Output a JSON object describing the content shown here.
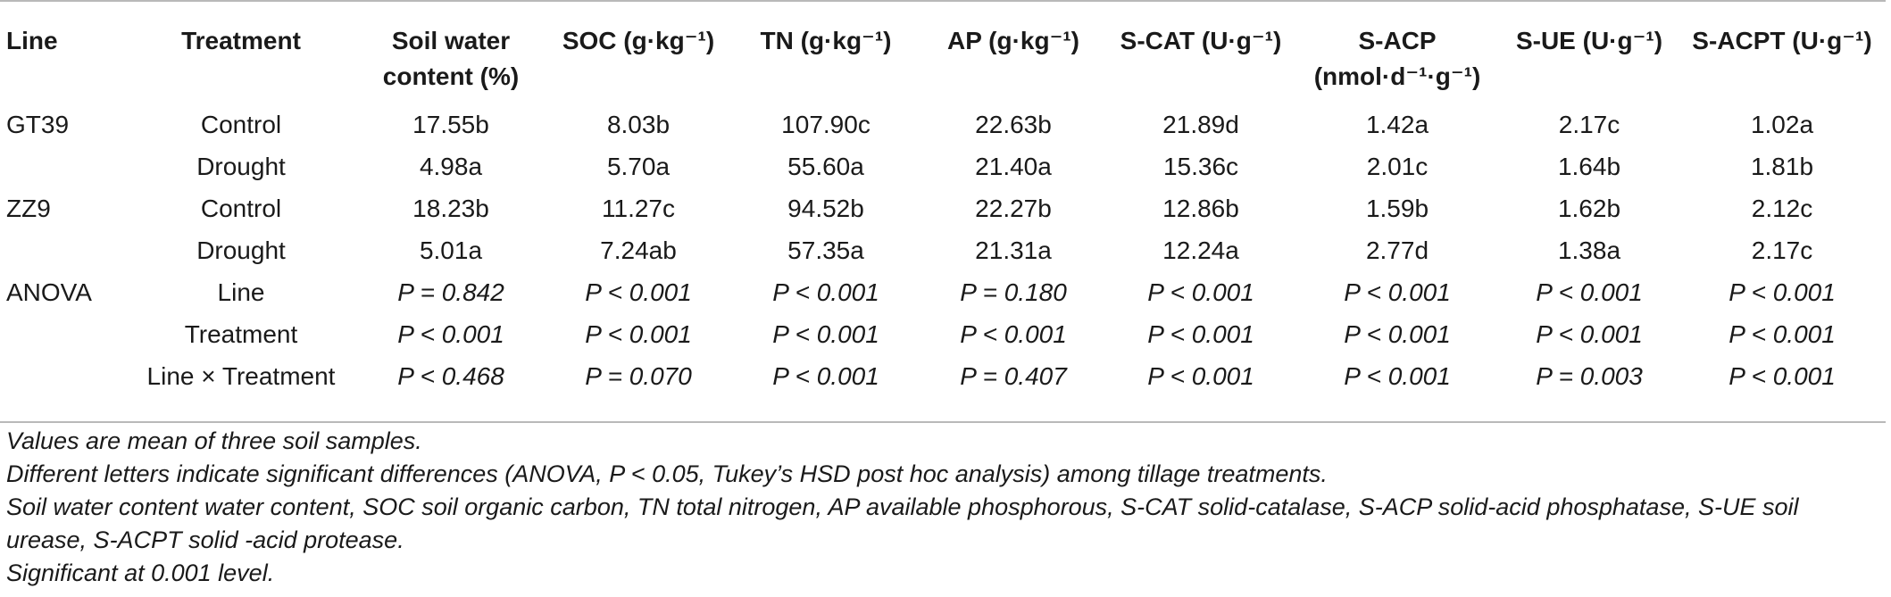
{
  "table": {
    "headers": [
      "Line",
      "Treatment",
      "Soil water content (%)",
      "SOC (g·kg⁻¹)",
      "TN (g·kg⁻¹)",
      "AP (g·kg⁻¹)",
      "S-CAT (U·g⁻¹)",
      "S-ACP (nmol·d⁻¹·g⁻¹)",
      "S-UE (U·g⁻¹)",
      "S-ACPT (U·g⁻¹)"
    ],
    "rows": [
      [
        "GT39",
        "Control",
        "17.55b",
        "8.03b",
        "107.90c",
        "22.63b",
        "21.89d",
        "1.42a",
        "2.17c",
        "1.02a"
      ],
      [
        "",
        "Drought",
        "4.98a",
        "5.70a",
        "55.60a",
        "21.40a",
        "15.36c",
        "2.01c",
        "1.64b",
        "1.81b"
      ],
      [
        "ZZ9",
        "Control",
        "18.23b",
        "11.27c",
        "94.52b",
        "22.27b",
        "12.86b",
        "1.59b",
        "1.62b",
        "2.12c"
      ],
      [
        "",
        "Drought",
        "5.01a",
        "7.24ab",
        "57.35a",
        "21.31a",
        "12.24a",
        "2.77d",
        "1.38a",
        "2.17c"
      ],
      [
        "ANOVA",
        "Line",
        "P = 0.842",
        "P < 0.001",
        "P < 0.001",
        "P = 0.180",
        "P < 0.001",
        "P < 0.001",
        "P < 0.001",
        "P < 0.001"
      ],
      [
        "",
        "Treatment",
        "P < 0.001",
        "P < 0.001",
        "P < 0.001",
        "P < 0.001",
        "P < 0.001",
        "P < 0.001",
        "P < 0.001",
        "P < 0.001"
      ],
      [
        "",
        "Line × Treatment",
        "P < 0.468",
        "P = 0.070",
        "P < 0.001",
        "P = 0.407",
        "P < 0.001",
        "P < 0.001",
        "P = 0.003",
        "P < 0.001"
      ]
    ]
  },
  "footnotes": [
    "Values are mean of three soil samples.",
    "Different letters indicate significant differences (ANOVA, P < 0.05, Tukey’s HSD post hoc analysis) among tillage treatments.",
    "Soil water content water content, SOC soil organic carbon, TN total nitrogen, AP available phosphorous, S-CAT solid-catalase, S-ACP solid-acid phosphatase, S-UE soil urease, S-ACPT solid -acid protease.",
    "Significant at 0.001 level."
  ]
}
